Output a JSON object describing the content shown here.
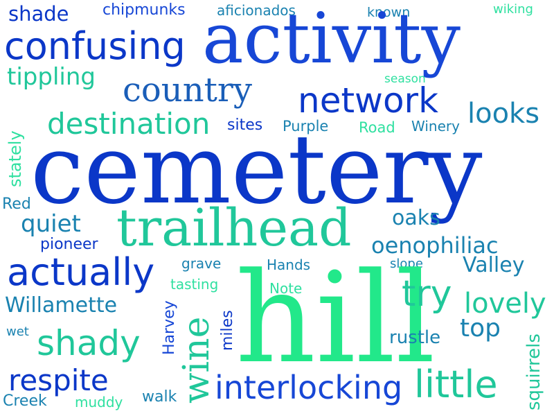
{
  "colors": {
    "blue": "#0b37c8",
    "royal": "#1747d6",
    "teal": "#1a82b0",
    "seafoam": "#20c79a",
    "green": "#22e88a",
    "mint": "#2fe0a0"
  },
  "words": {
    "shade": "shade",
    "chipmunks": "chipmunks",
    "aficionados": "aficionados",
    "known": "known",
    "wiking": "wiking",
    "activity": "activity",
    "confusing": "confusing",
    "tippling": "tippling",
    "season": "season",
    "country": "country",
    "network": "network",
    "stately": "stately",
    "destination": "destination",
    "sites": "sites",
    "purple": "Purple",
    "road": "Road",
    "winery": "Winery",
    "looks": "looks",
    "cemetery": "cemetery",
    "red": "Red",
    "quiet": "quiet",
    "trailhead": "trailhead",
    "oaks": "oaks",
    "pioneer": "pioneer",
    "oenophiliac": "oenophiliac",
    "grave": "grave",
    "hands": "Hands",
    "slope": "slope",
    "actually": "actually",
    "valley": "Valley",
    "tasting": "tasting",
    "note": "Note",
    "willamette": "Willamette",
    "hill": "hill",
    "try": "try",
    "lovely": "lovely",
    "harvey": "Harvey",
    "wet": "wet",
    "miles": "miles",
    "top": "top",
    "shady": "shady",
    "wine": "wine",
    "rustle": "rustle",
    "squirrels": "squirrels",
    "respite": "respite",
    "interlocking": "interlocking",
    "little": "little",
    "creek": "Creek",
    "muddy": "muddy",
    "walk": "walk"
  }
}
